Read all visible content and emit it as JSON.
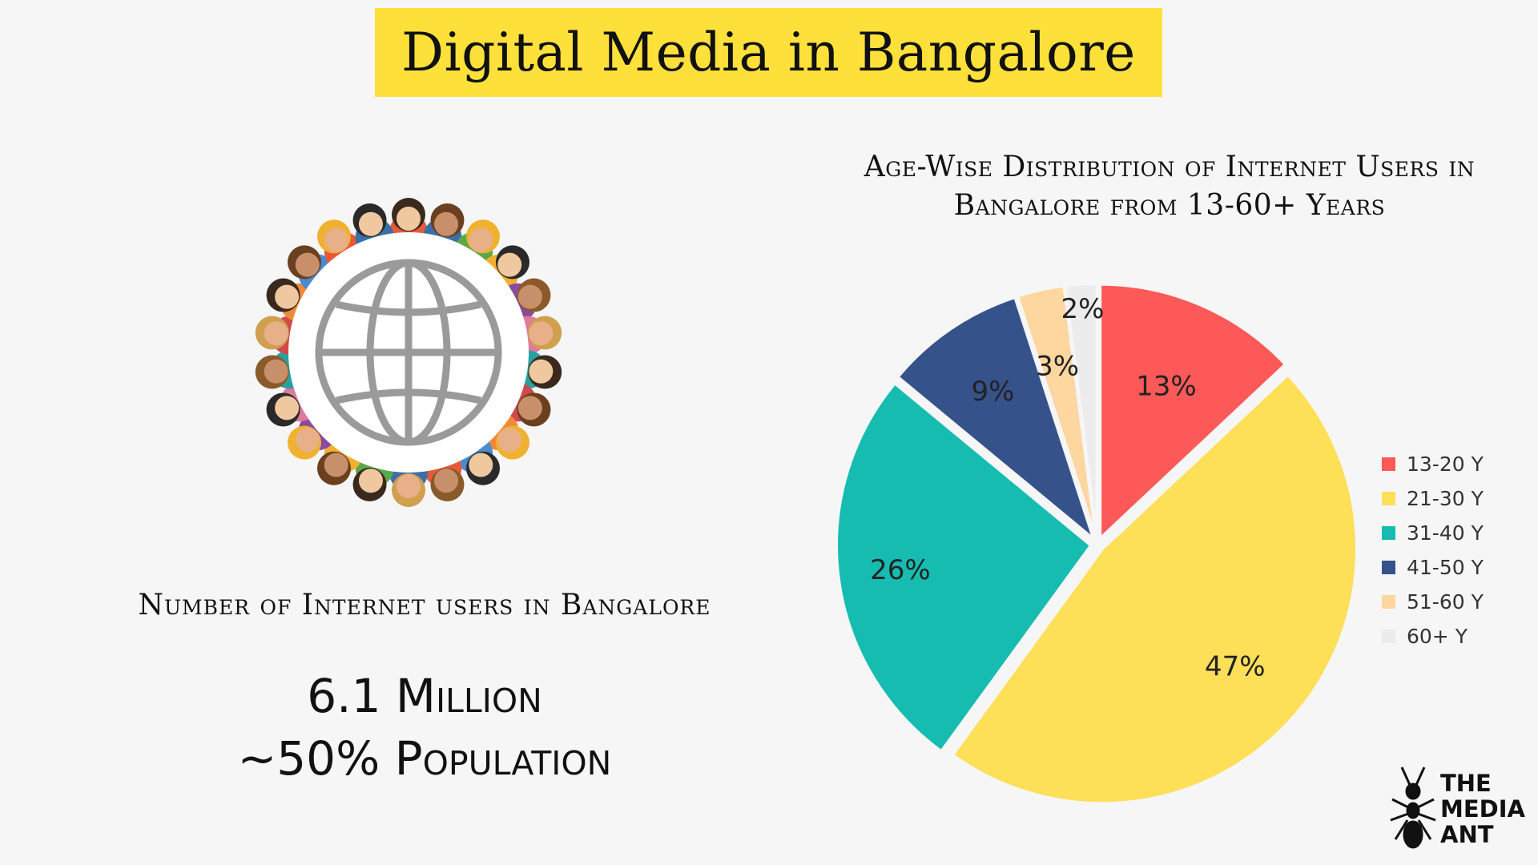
{
  "title": "Digital Media in Bangalore",
  "internet_users": {
    "label": "Number of Internet users in Bangalore",
    "count": "6.1 Million",
    "share": "~50% Population"
  },
  "icons": {
    "globe": "globe-icon",
    "people": "people-circle-illustration",
    "logo": "ant-icon"
  },
  "logo": {
    "line1": "THE",
    "line2": "MEDIA",
    "line3": "ANT"
  },
  "chart_data": {
    "type": "pie",
    "title": "Age-Wise Distribution of Internet Users in Bangalore from 13-60+ Years",
    "legend_position": "right",
    "slices": [
      {
        "label": "13-20 Y",
        "value": 13,
        "display": "13%",
        "color": "#fd5958"
      },
      {
        "label": "21-30 Y",
        "value": 47,
        "display": "47%",
        "color": "#fddf58"
      },
      {
        "label": "31-40 Y",
        "value": 26,
        "display": "26%",
        "color": "#17bcb1"
      },
      {
        "label": "41-50 Y",
        "value": 9,
        "display": "9%",
        "color": "#36528a"
      },
      {
        "label": "51-60 Y",
        "value": 3,
        "display": "3%",
        "color": "#fdd6a0"
      },
      {
        "label": "60+ Y",
        "value": 2,
        "display": "2%",
        "color": "#ececec"
      }
    ]
  }
}
